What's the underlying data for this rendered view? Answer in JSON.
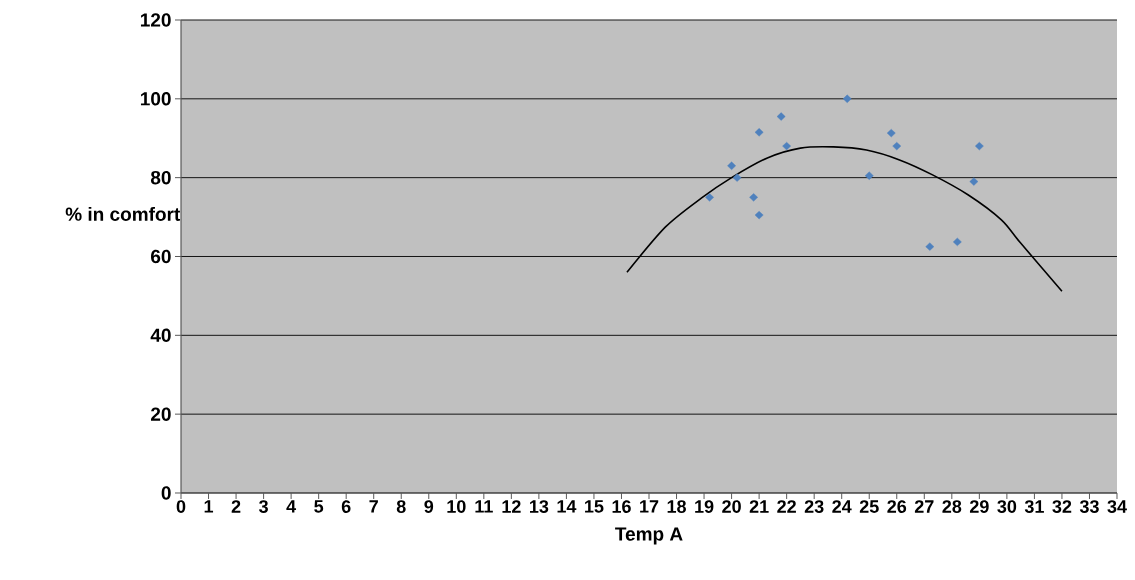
{
  "chart_data": {
    "type": "scatter",
    "xlabel": "Temp A",
    "ylabel": "% in comfort",
    "xlim": [
      0,
      34
    ],
    "ylim": [
      0,
      120
    ],
    "xticks": [
      0,
      1,
      2,
      3,
      4,
      5,
      6,
      7,
      8,
      9,
      10,
      11,
      12,
      13,
      14,
      15,
      16,
      17,
      18,
      19,
      20,
      21,
      22,
      23,
      24,
      25,
      26,
      27,
      28,
      29,
      30,
      31,
      32,
      33,
      34
    ],
    "yticks": [
      0,
      20,
      40,
      60,
      80,
      100,
      120
    ],
    "grid": "y",
    "series": [
      {
        "marker": "diamond",
        "color": "#4f81bd",
        "x": [
          19.2,
          20.0,
          20.2,
          20.8,
          21.0,
          21.0,
          21.8,
          22.0,
          24.2,
          25.0,
          25.8,
          26.0,
          27.2,
          28.2,
          28.8,
          29.0
        ],
        "values": [
          75,
          83,
          80,
          75,
          70.5,
          91.5,
          95.5,
          88,
          100,
          80.5,
          91.3,
          88,
          62.5,
          63.7,
          79,
          88
        ]
      },
      {
        "type": "line",
        "marker": "none",
        "color": "#000000",
        "x": [
          16.2,
          17.6,
          18.9,
          20.0,
          21.3,
          22.5,
          23.7,
          24.9,
          26.1,
          27.3,
          28.6,
          29.8,
          30.5,
          32.0
        ],
        "values": [
          56,
          67.5,
          74.8,
          80,
          85,
          87.5,
          87.8,
          87,
          84.5,
          80.7,
          75.6,
          69.3,
          63.4,
          51.2
        ]
      }
    ]
  }
}
